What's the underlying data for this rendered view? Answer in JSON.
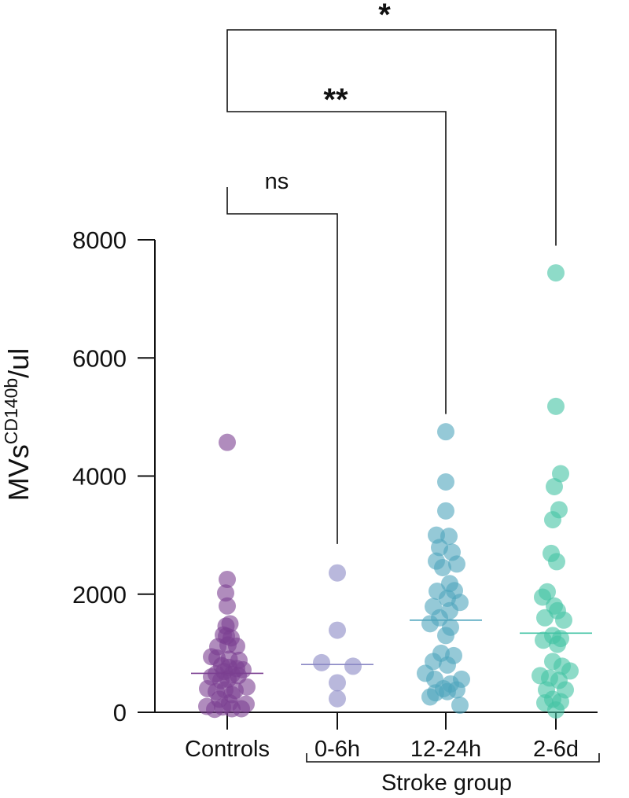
{
  "chart_data": {
    "type": "scatter",
    "title": "",
    "xlabel": "",
    "ylabel_main": "MVs",
    "ylabel_sup": "CD140b",
    "ylabel_unit": "/ul",
    "ylim": [
      0,
      8000
    ],
    "yticks": [
      0,
      2000,
      4000,
      6000,
      8000
    ],
    "yticks_labels": [
      "0",
      "2000",
      "4000",
      "6000",
      "8000"
    ],
    "grid": false,
    "group_label": "Stroke group",
    "categories": [
      "Controls",
      "0-6h",
      "12-24h",
      "2-6d"
    ],
    "series": [
      {
        "category": "Controls",
        "color": "#7b3f91",
        "median": 660,
        "points": [
          {
            "dx": 0,
            "y": 4570
          },
          {
            "dx": 0,
            "y": 2250
          },
          {
            "dx": -0.2,
            "y": 2020
          },
          {
            "dx": 0,
            "y": 1800
          },
          {
            "dx": 0.35,
            "y": 1500
          },
          {
            "dx": -0.15,
            "y": 1460
          },
          {
            "dx": -0.5,
            "y": 1310
          },
          {
            "dx": -0.1,
            "y": 1290
          },
          {
            "dx": 0.5,
            "y": 1260
          },
          {
            "dx": 0.1,
            "y": 1140
          },
          {
            "dx": 1.2,
            "y": 1120
          },
          {
            "dx": -1.2,
            "y": 1110
          },
          {
            "dx": -2.0,
            "y": 940
          },
          {
            "dx": -1.3,
            "y": 920
          },
          {
            "dx": 0.25,
            "y": 900
          },
          {
            "dx": 1.5,
            "y": 880
          },
          {
            "dx": -0.7,
            "y": 790
          },
          {
            "dx": 0.2,
            "y": 760
          },
          {
            "dx": 1.2,
            "y": 740
          },
          {
            "dx": 2.0,
            "y": 720
          },
          {
            "dx": -0.4,
            "y": 690
          },
          {
            "dx": -1.4,
            "y": 650
          },
          {
            "dx": 0.6,
            "y": 640
          },
          {
            "dx": 1.4,
            "y": 620
          },
          {
            "dx": -2.0,
            "y": 600
          },
          {
            "dx": 0.1,
            "y": 560
          },
          {
            "dx": -0.8,
            "y": 540
          },
          {
            "dx": 2.5,
            "y": 430
          },
          {
            "dx": -2.5,
            "y": 400
          },
          {
            "dx": -0.3,
            "y": 380
          },
          {
            "dx": 1.0,
            "y": 370
          },
          {
            "dx": -1.4,
            "y": 350
          },
          {
            "dx": 0.6,
            "y": 300
          },
          {
            "dx": -1.0,
            "y": 220
          },
          {
            "dx": 0.3,
            "y": 160
          },
          {
            "dx": 2.4,
            "y": 140
          },
          {
            "dx": -2.6,
            "y": 100
          },
          {
            "dx": -0.6,
            "y": 90
          },
          {
            "dx": 0.6,
            "y": 60
          },
          {
            "dx": 1.8,
            "y": 60
          },
          {
            "dx": -1.6,
            "y": 50
          }
        ]
      },
      {
        "category": "0-6h",
        "color": "#8a88c4",
        "median": 810,
        "points": [
          {
            "dx": 0,
            "y": 2360
          },
          {
            "dx": 0,
            "y": 1390
          },
          {
            "dx": -2.0,
            "y": 840
          },
          {
            "dx": 2.0,
            "y": 780
          },
          {
            "dx": 0,
            "y": 500
          },
          {
            "dx": 0,
            "y": 230
          }
        ]
      },
      {
        "category": "12-24h",
        "color": "#4ea5bd",
        "median": 1560,
        "points": [
          {
            "dx": 0,
            "y": 4750
          },
          {
            "dx": 0,
            "y": 3900
          },
          {
            "dx": 0,
            "y": 3410
          },
          {
            "dx": -1.2,
            "y": 3000
          },
          {
            "dx": 0.4,
            "y": 2980
          },
          {
            "dx": -0.8,
            "y": 2790
          },
          {
            "dx": 0.8,
            "y": 2710
          },
          {
            "dx": -1.2,
            "y": 2560
          },
          {
            "dx": 1.4,
            "y": 2510
          },
          {
            "dx": -0.4,
            "y": 2450
          },
          {
            "dx": 0.5,
            "y": 2180
          },
          {
            "dx": -1.1,
            "y": 2050
          },
          {
            "dx": 1.1,
            "y": 2060
          },
          {
            "dx": 0.2,
            "y": 1930
          },
          {
            "dx": 1.8,
            "y": 1860
          },
          {
            "dx": -1.6,
            "y": 1790
          },
          {
            "dx": 0.5,
            "y": 1720
          },
          {
            "dx": -0.8,
            "y": 1600
          },
          {
            "dx": -2.0,
            "y": 1500
          },
          {
            "dx": 0.6,
            "y": 1440
          },
          {
            "dx": 0,
            "y": 1300
          },
          {
            "dx": -0.6,
            "y": 1000
          },
          {
            "dx": 1.0,
            "y": 960
          },
          {
            "dx": -1.6,
            "y": 860
          },
          {
            "dx": 0.2,
            "y": 800
          },
          {
            "dx": -2.6,
            "y": 660
          },
          {
            "dx": 2.0,
            "y": 560
          },
          {
            "dx": -1.4,
            "y": 560
          },
          {
            "dx": 0.6,
            "y": 480
          },
          {
            "dx": -0.3,
            "y": 400
          },
          {
            "dx": 1.4,
            "y": 380
          },
          {
            "dx": -1.3,
            "y": 330
          },
          {
            "dx": 0.2,
            "y": 350
          },
          {
            "dx": -2.0,
            "y": 260
          },
          {
            "dx": 1.8,
            "y": 120
          }
        ]
      },
      {
        "category": "2-6d",
        "color": "#42c3a4",
        "median": 1340,
        "points": [
          {
            "dx": 0,
            "y": 7440
          },
          {
            "dx": 0,
            "y": 5180
          },
          {
            "dx": 0.6,
            "y": 4040
          },
          {
            "dx": -0.2,
            "y": 3820
          },
          {
            "dx": 0.4,
            "y": 3430
          },
          {
            "dx": -0.4,
            "y": 3260
          },
          {
            "dx": -0.6,
            "y": 2690
          },
          {
            "dx": 0.1,
            "y": 2550
          },
          {
            "dx": -1.1,
            "y": 2040
          },
          {
            "dx": -1.7,
            "y": 1950
          },
          {
            "dx": -0.2,
            "y": 1800
          },
          {
            "dx": 0.2,
            "y": 1720
          },
          {
            "dx": -1.4,
            "y": 1600
          },
          {
            "dx": 1.0,
            "y": 1560
          },
          {
            "dx": -0.4,
            "y": 1300
          },
          {
            "dx": 0.6,
            "y": 1250
          },
          {
            "dx": -1.6,
            "y": 1220
          },
          {
            "dx": 0.2,
            "y": 1150
          },
          {
            "dx": -0.4,
            "y": 860
          },
          {
            "dx": 0.8,
            "y": 780
          },
          {
            "dx": 1.8,
            "y": 700
          },
          {
            "dx": -2.0,
            "y": 620
          },
          {
            "dx": -0.8,
            "y": 580
          },
          {
            "dx": 0.4,
            "y": 540
          },
          {
            "dx": -1.2,
            "y": 380
          },
          {
            "dx": 1.2,
            "y": 380
          },
          {
            "dx": -0.4,
            "y": 220
          },
          {
            "dx": 0.6,
            "y": 180
          },
          {
            "dx": -1.4,
            "y": 160
          },
          {
            "dx": 0,
            "y": 40
          }
        ]
      }
    ],
    "comparisons": [
      {
        "from": "Controls",
        "to": "0-6h",
        "label": "ns",
        "ref_value": 2850
      },
      {
        "from": "Controls",
        "to": "12-24h",
        "label": "**",
        "ref_value": 5050
      },
      {
        "from": "Controls",
        "to": "2-6d",
        "label": "*",
        "ref_value": 7900
      }
    ]
  }
}
